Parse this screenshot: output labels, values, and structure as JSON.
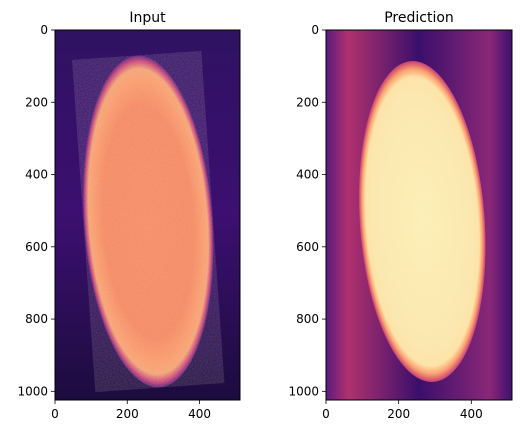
{
  "chart_data": [
    {
      "type": "heatmap",
      "title": "Input",
      "colormap": "magma",
      "x_ticks": [
        0,
        200,
        400
      ],
      "y_ticks": [
        0,
        200,
        400,
        600,
        800,
        1000
      ],
      "xlim": [
        0,
        512
      ],
      "ylim": [
        1024,
        0
      ],
      "content": "bright egg-shaped region, speckled orange (noisy)",
      "ellipse_center": [
        258,
        530
      ],
      "ellipse_radii": [
        178,
        460
      ],
      "interior_level": 0.72,
      "background_level": 0.12
    },
    {
      "type": "heatmap",
      "title": "Prediction",
      "colormap": "magma",
      "x_ticks": [
        0,
        200,
        400
      ],
      "y_ticks": [
        0,
        200,
        400,
        600,
        800,
        1000
      ],
      "xlim": [
        0,
        512
      ],
      "ylim": [
        1024,
        0
      ],
      "content": "bright egg-shaped region, smooth pale yellow (denoised)",
      "ellipse_center": [
        265,
        530
      ],
      "ellipse_radii": [
        172,
        445
      ],
      "interior_level": 0.96,
      "background_level": 0.18
    }
  ]
}
